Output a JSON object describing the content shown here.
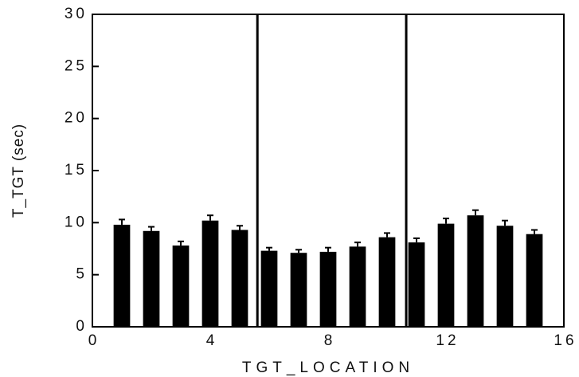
{
  "chart_data": {
    "type": "bar",
    "x_label": "TGT_LOCATION",
    "y_label": "T_TGT  (sec)",
    "x": [
      1,
      2,
      3,
      4,
      5,
      6,
      7,
      8,
      9,
      10,
      11,
      12,
      13,
      14,
      15
    ],
    "values": [
      9.8,
      9.2,
      7.8,
      10.2,
      9.3,
      7.3,
      7.1,
      7.2,
      7.7,
      8.6,
      8.1,
      9.9,
      10.7,
      9.7,
      8.9
    ],
    "errors": [
      0.5,
      0.4,
      0.4,
      0.5,
      0.4,
      0.3,
      0.3,
      0.4,
      0.4,
      0.4,
      0.4,
      0.5,
      0.5,
      0.5,
      0.4
    ],
    "color": "#000000",
    "reference_lines_x": [
      5.6,
      10.65
    ],
    "xlim": [
      0,
      16
    ],
    "xticks": [
      0,
      4,
      8,
      12,
      16
    ],
    "ylim": [
      0,
      30
    ],
    "yticks": [
      0,
      5,
      10,
      15,
      20,
      25,
      30
    ]
  }
}
